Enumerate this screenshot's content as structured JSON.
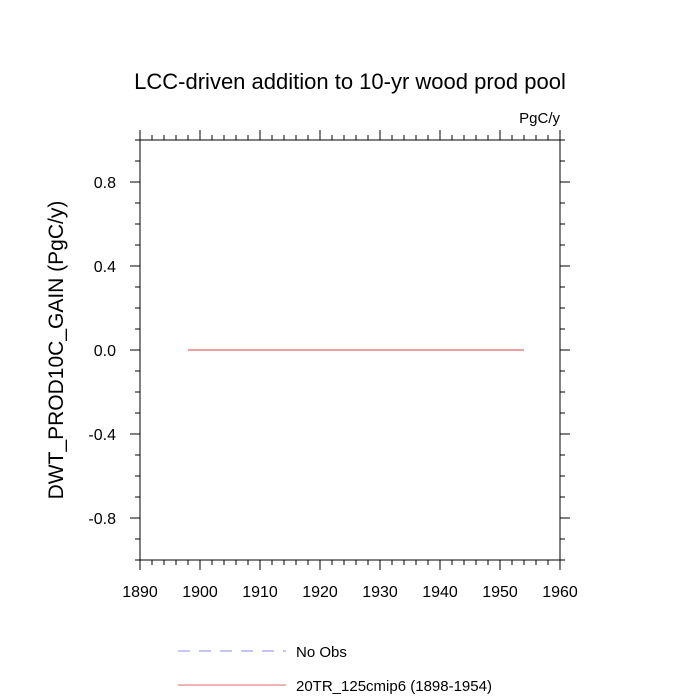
{
  "chart_data": {
    "type": "line",
    "title": "LCC-driven addition to 10-yr wood prod pool",
    "units_label": "PgC/y",
    "ylabel": "DWT_PROD10C_GAIN  (PgC/y)",
    "xlabel": "",
    "xlim": [
      1890,
      1960
    ],
    "ylim": [
      -1.0,
      1.0
    ],
    "x_ticks": [
      1890,
      1900,
      1910,
      1920,
      1930,
      1940,
      1950,
      1960
    ],
    "x_tick_labels": [
      "1890",
      "1900",
      "1910",
      "1920",
      "1930",
      "1940",
      "1950",
      "1960"
    ],
    "y_ticks": [
      -0.8,
      -0.4,
      0.0,
      0.4,
      0.8
    ],
    "y_tick_labels": [
      "-0.8",
      "-0.4",
      "0.0",
      "0.4",
      "0.8"
    ],
    "grid": false,
    "legend_position": "bottom-left",
    "series": [
      {
        "name": "20TR_125cmip6 (1898-1954)",
        "color": "#e06666",
        "style": "solid",
        "x": [
          1898,
          1954
        ],
        "values": [
          0.0,
          0.0
        ]
      }
    ],
    "legend": [
      {
        "label": "No Obs",
        "color": "#8888ee",
        "style": "dashed"
      },
      {
        "label": "20TR_125cmip6 (1898-1954)",
        "color": "#e06666",
        "style": "solid"
      }
    ]
  }
}
